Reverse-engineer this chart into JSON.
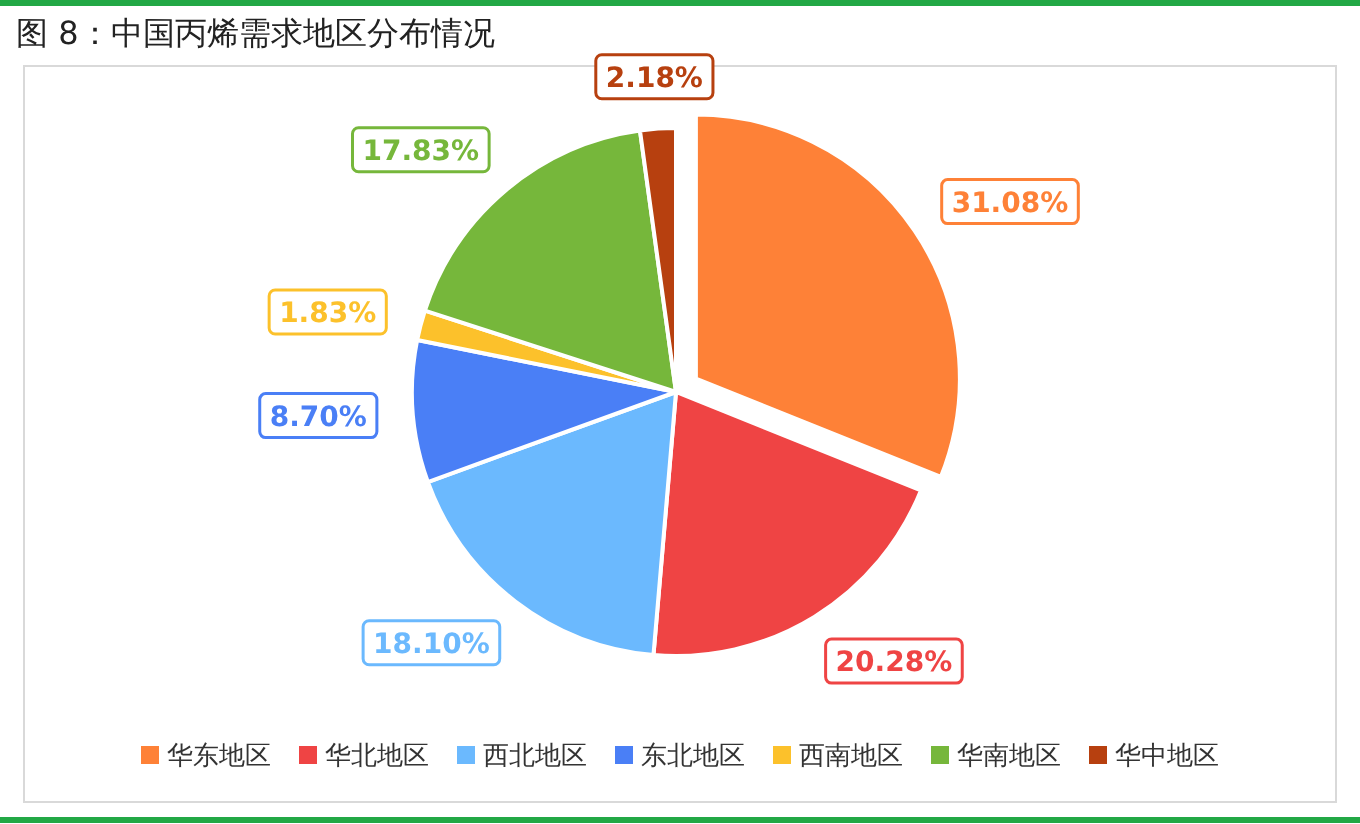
{
  "chart_data": {
    "type": "pie",
    "title": "图 8：中国丙烯需求地区分布情况",
    "categories": [
      "华东地区",
      "华北地区",
      "西北地区",
      "东北地区",
      "西南地区",
      "华南地区",
      "华中地区"
    ],
    "values": [
      31.08,
      20.28,
      18.1,
      8.7,
      1.83,
      17.83,
      2.18
    ],
    "value_labels": [
      "31.08%",
      "20.28%",
      "18.10%",
      "8.70%",
      "1.83%",
      "17.83%",
      "2.18%"
    ],
    "colors": [
      "#fe8137",
      "#ef4444",
      "#6bb9fe",
      "#4a7ff6",
      "#fcc12b",
      "#76b73b",
      "#b7400f"
    ],
    "legend": "bottom"
  }
}
